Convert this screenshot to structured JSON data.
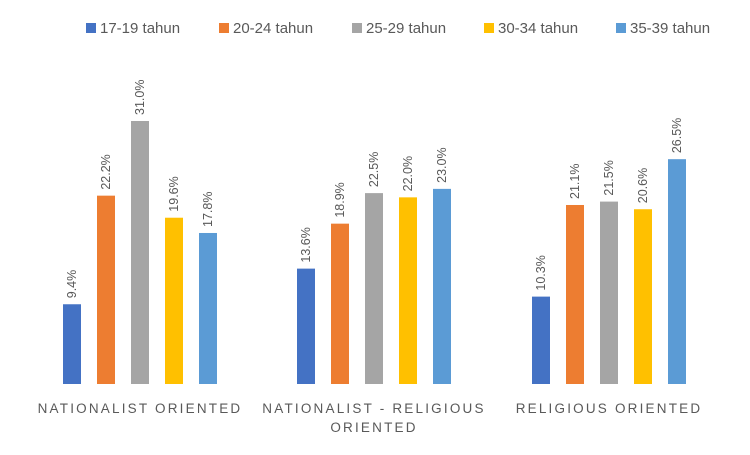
{
  "chart_data": {
    "type": "bar",
    "title": "",
    "xlabel": "",
    "ylabel": "",
    "ylim": [
      0,
      31
    ],
    "grid": false,
    "legend_position": "top",
    "categories": [
      "NATIONALIST ORIENTED",
      "NATIONALIST - RELIGIOUS ORIENTED",
      "RELIGIOUS ORIENTED"
    ],
    "category_lines": [
      [
        "NATIONALIST ORIENTED"
      ],
      [
        "NATIONALIST - RELIGIOUS",
        "ORIENTED"
      ],
      [
        "RELIGIOUS ORIENTED"
      ]
    ],
    "series": [
      {
        "name": "17-19 tahun",
        "color": "#4472C4",
        "values": [
          9.4,
          13.6,
          10.3
        ],
        "labels": [
          "9.4%",
          "13.6%",
          "10.3%"
        ]
      },
      {
        "name": "20-24 tahun",
        "color": "#ED7D31",
        "values": [
          22.2,
          18.9,
          21.1
        ],
        "labels": [
          "22.2%",
          "18.9%",
          "21.1%"
        ]
      },
      {
        "name": "25-29 tahun",
        "color": "#A5A5A5",
        "values": [
          31.0,
          22.5,
          21.5
        ],
        "labels": [
          "31.0%",
          "22.5%",
          "21.5%"
        ]
      },
      {
        "name": "30-34 tahun",
        "color": "#FFC000",
        "values": [
          19.6,
          22.0,
          20.6
        ],
        "labels": [
          "19.6%",
          "22.0%",
          "20.6%"
        ]
      },
      {
        "name": "35-39 tahun",
        "color": "#5B9BD5",
        "values": [
          17.8,
          23.0,
          26.5
        ],
        "labels": [
          "17.8%",
          "23.0%",
          "26.5%"
        ]
      }
    ]
  }
}
